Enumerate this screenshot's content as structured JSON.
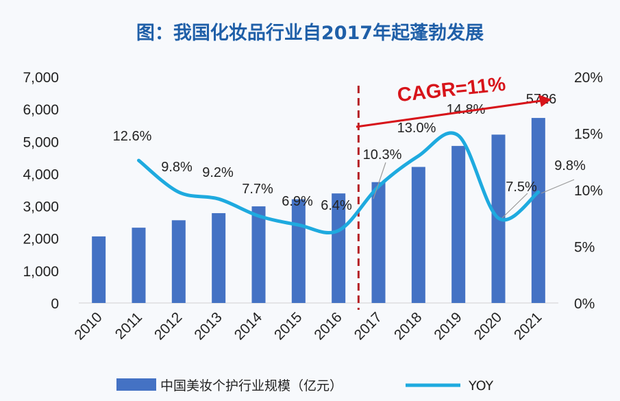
{
  "chart_data": {
    "type": "bar+line",
    "title": "图：我国化妆品行业自2017年起蓬勃发展",
    "categories": [
      "2010",
      "2011",
      "2012",
      "2013",
      "2014",
      "2015",
      "2016",
      "2017",
      "2018",
      "2019",
      "2020",
      "2021"
    ],
    "series": [
      {
        "name": "中国美妆个护行业规模（亿元）",
        "type": "bar",
        "axis": "left",
        "color": "#4472c4",
        "values": [
          2060,
          2330,
          2560,
          2780,
          2990,
          3210,
          3390,
          3740,
          4210,
          4860,
          5210,
          5726
        ]
      },
      {
        "name": "YOY",
        "type": "line",
        "axis": "right",
        "color": "#1eaadf",
        "unit": "%",
        "values": [
          null,
          12.6,
          9.8,
          9.2,
          7.7,
          6.9,
          6.4,
          10.3,
          13.0,
          14.8,
          7.5,
          9.8
        ]
      }
    ],
    "data_labels": {
      "bar": {
        "2021": "5726"
      },
      "line": [
        "12.6%",
        "9.8%",
        "9.2%",
        "7.7%",
        "6.9%",
        "6.4%",
        "10.3%",
        "13.0%",
        "14.8%",
        "7.5%",
        "9.8%"
      ]
    },
    "left_axis": {
      "ylim": [
        0,
        7000
      ],
      "ticks": [
        "0",
        "1,000",
        "2,000",
        "3,000",
        "4,000",
        "5,000",
        "6,000",
        "7,000"
      ]
    },
    "right_axis": {
      "ylim": [
        0,
        20
      ],
      "ticks": [
        "0%",
        "5%",
        "10%",
        "15%",
        "20%"
      ]
    },
    "annotation": {
      "text": "CAGR=11%",
      "color": "#d7141a",
      "from_year": "2017"
    },
    "grid": false,
    "legend_placement": "bottom"
  }
}
